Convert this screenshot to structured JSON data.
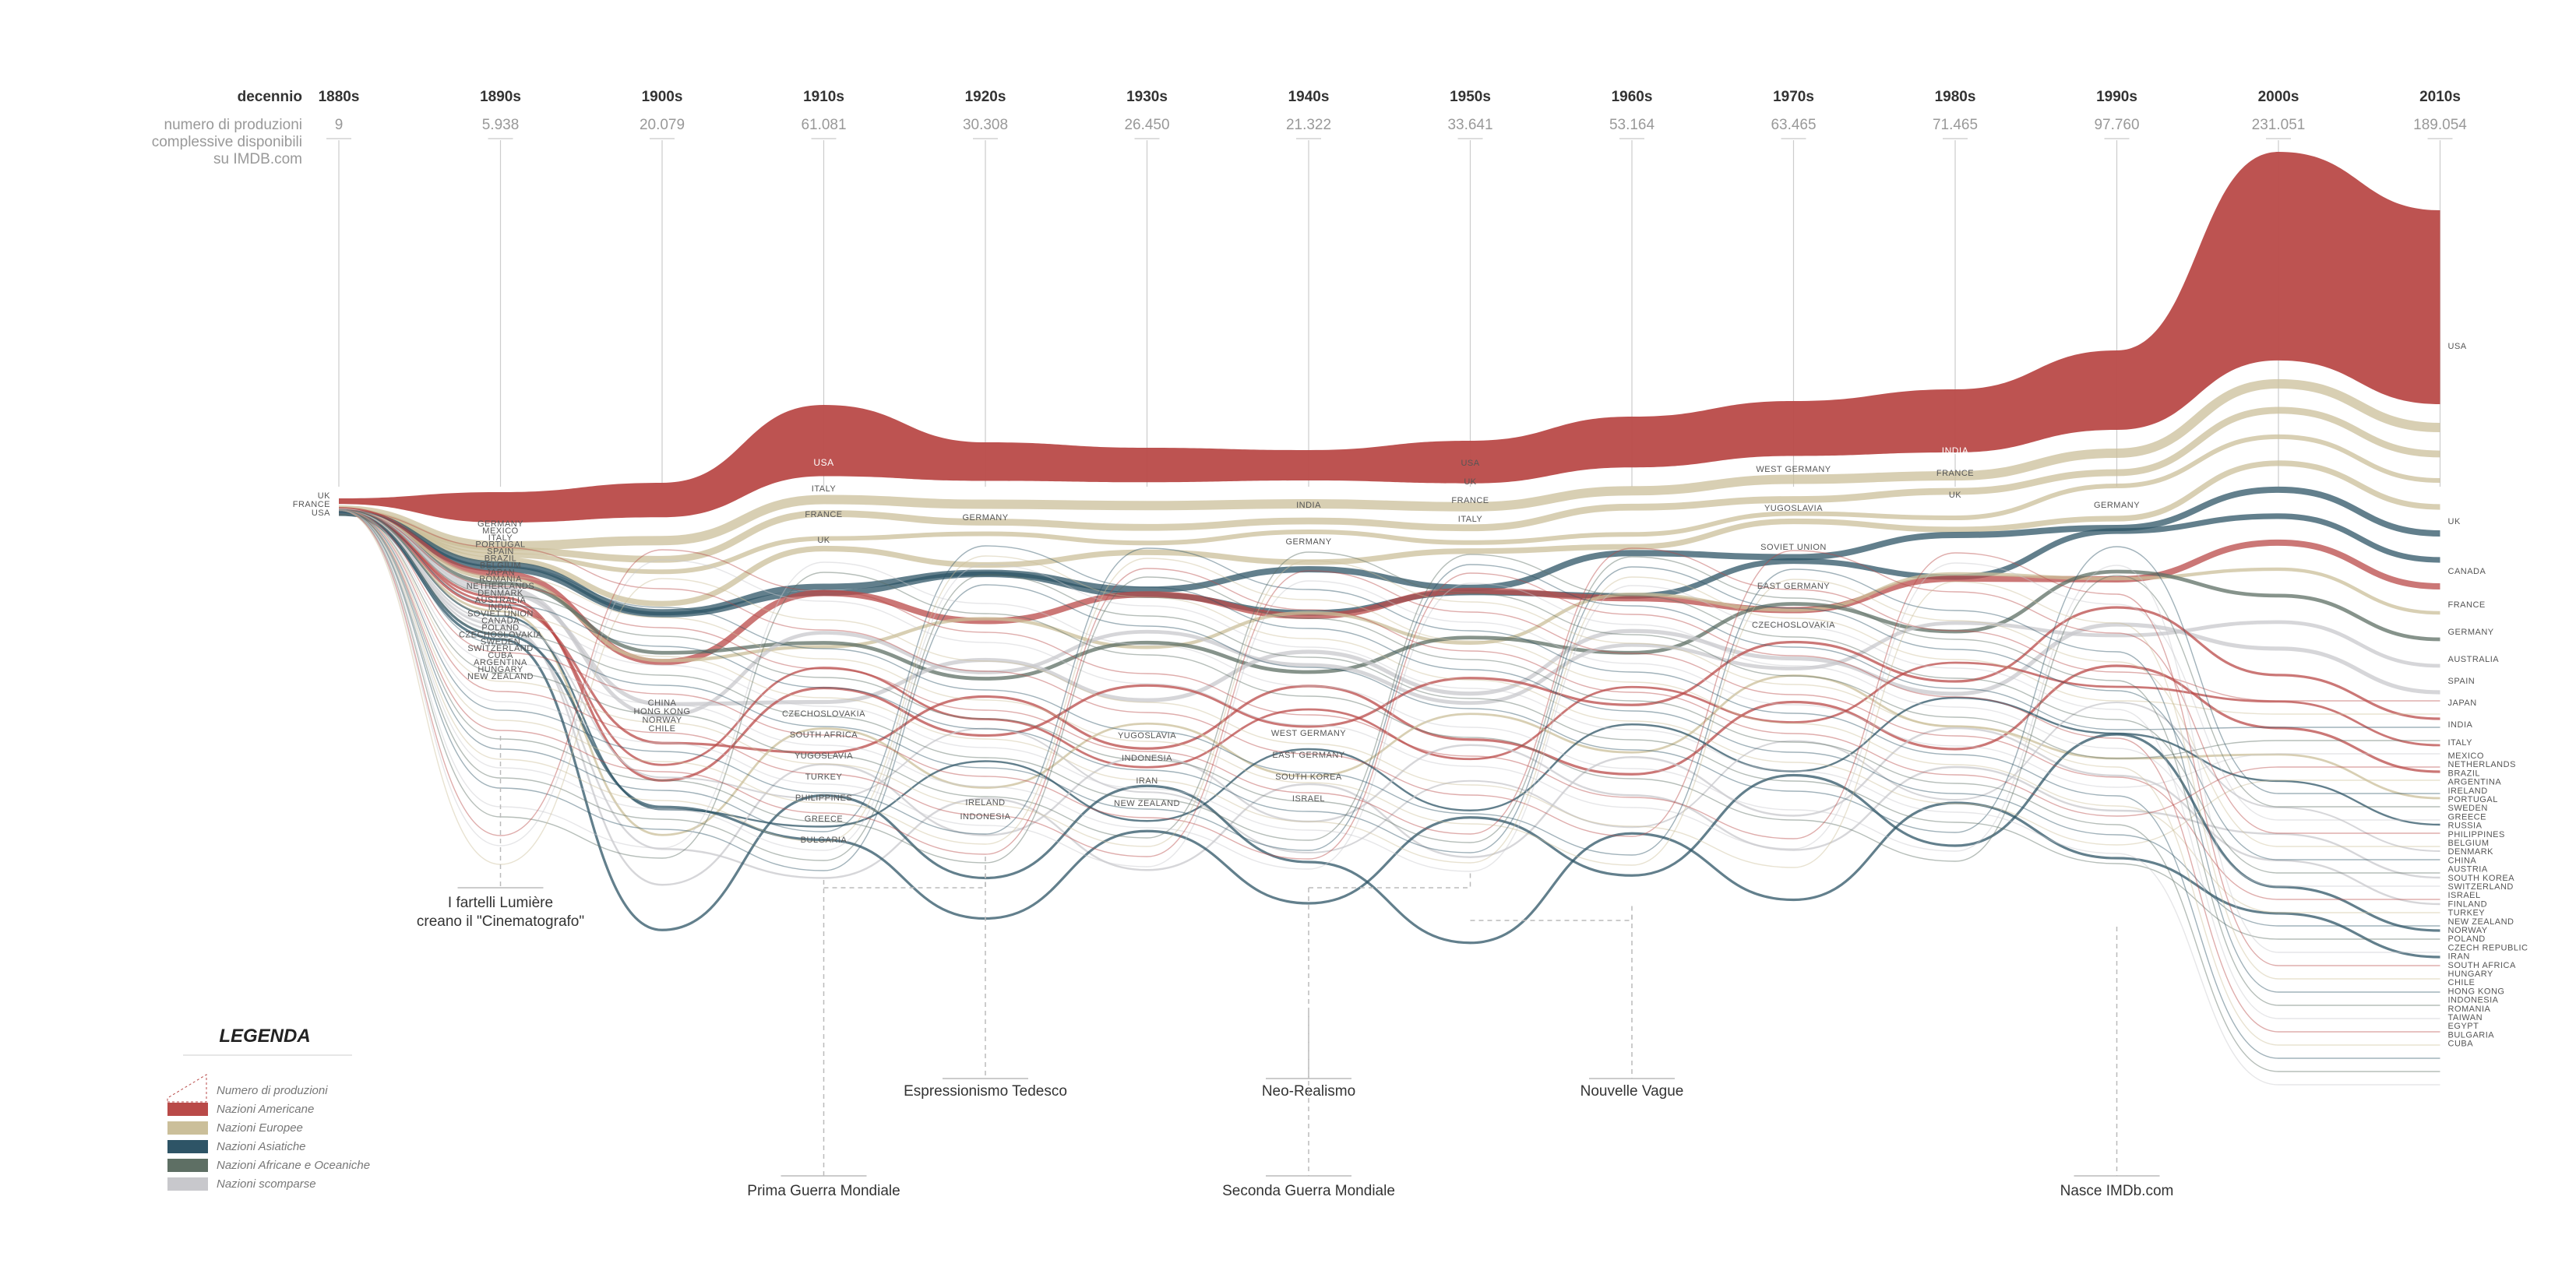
{
  "chart_data": {
    "type": "area",
    "header_label": "decennio",
    "subheader_label": [
      "numero di produzioni",
      "complessive disponibili",
      "su IMDB.com"
    ],
    "decades": [
      "1880s",
      "1890s",
      "1900s",
      "1910s",
      "1920s",
      "1930s",
      "1940s",
      "1950s",
      "1960s",
      "1970s",
      "1980s",
      "1990s",
      "2000s",
      "2010s"
    ],
    "totals": [
      "9",
      "5.938",
      "20.079",
      "61.081",
      "30.308",
      "26.450",
      "21.322",
      "33.641",
      "53.164",
      "63.465",
      "71.465",
      "97.760",
      "231.051",
      "189.054"
    ],
    "colors": {
      "Nazioni Americane": "#b94a48",
      "Nazioni Europee": "#cbbf9a",
      "Nazioni Asiatiche": "#2e5466",
      "Nazioni Africane e Oceaniche": "#5e6f64",
      "Nazioni scomparse": "#c8c8cc"
    },
    "series": [
      {
        "name": "USA",
        "group": "Nazioni Americane",
        "values": [
          0.5,
          2,
          2.5,
          7,
          3,
          2.5,
          2,
          3.5,
          4.5,
          5,
          6,
          8,
          28,
          22
        ]
      },
      {
        "name": "UK",
        "group": "Nazioni Europee",
        "values": [
          0.4,
          0.8,
          1.0,
          0.8,
          0.8,
          0.9,
          0.9,
          1,
          1.1,
          1.2,
          1.2,
          1.4,
          3,
          3
        ]
      },
      {
        "name": "FRANCE",
        "group": "Nazioni Europee",
        "values": [
          0.4,
          0.9,
          1.4,
          1.2,
          0.8,
          0.9,
          0.8,
          0.9,
          1.0,
          1.0,
          1.0,
          1.1,
          2.2,
          2.0
        ]
      },
      {
        "name": "ITALY",
        "group": "Nazioni Europee",
        "values": [
          0.1,
          0.3,
          0.8,
          1.4,
          0.6,
          0.5,
          0.5,
          0.8,
          1.0,
          0.9,
          0.8,
          0.8,
          1.5,
          1.2
        ]
      },
      {
        "name": "GERMANY",
        "group": "Nazioni Europee",
        "values": [
          0.1,
          0.4,
          0.6,
          0.9,
          1.0,
          0.7,
          0.7,
          0.5,
          0.4,
          0.3,
          0.3,
          1.0,
          1.8,
          1.6
        ]
      },
      {
        "name": "INDIA",
        "group": "Nazioni Asiatiche",
        "values": [
          0.05,
          0.1,
          0.2,
          0.3,
          0.5,
          0.7,
          0.9,
          1.1,
          1.3,
          1.5,
          1.7,
          1.4,
          2.0,
          1.6
        ]
      },
      {
        "name": "JAPAN",
        "group": "Nazioni Asiatiche",
        "values": [
          0.05,
          0.2,
          0.3,
          0.5,
          0.6,
          0.8,
          0.6,
          0.9,
          1.1,
          1.2,
          1.2,
          1.1,
          1.8,
          1.5
        ]
      },
      {
        "name": "CANADA",
        "group": "Nazioni Americane",
        "values": [
          0.05,
          0.1,
          0.2,
          0.3,
          0.2,
          0.2,
          0.3,
          0.4,
          0.6,
          0.9,
          1.1,
          1.4,
          2.0,
          1.6
        ]
      },
      {
        "name": "SPAIN",
        "group": "Nazioni Europee",
        "values": [
          0.05,
          0.2,
          0.3,
          0.4,
          0.3,
          0.3,
          0.4,
          0.5,
          0.7,
          0.7,
          0.6,
          0.6,
          1.1,
          1.0
        ]
      },
      {
        "name": "AUSTRALIA",
        "group": "Nazioni Africane e Oceaniche",
        "values": [
          0.05,
          0.2,
          0.3,
          0.4,
          0.2,
          0.2,
          0.2,
          0.3,
          0.4,
          0.6,
          0.7,
          0.8,
          1.2,
          1.1
        ]
      },
      {
        "name": "SOVIET UNION",
        "group": "Nazioni scomparse",
        "values": [
          0.05,
          0.2,
          0.3,
          0.5,
          0.6,
          0.7,
          0.8,
          1.0,
          1.2,
          1.1,
          1.0,
          0.3,
          0,
          0
        ]
      },
      {
        "name": "WEST GERMANY",
        "group": "Nazioni scomparse",
        "values": [
          0,
          0,
          0,
          0,
          0,
          0,
          0.3,
          0.9,
          1.2,
          1.3,
          1.1,
          0.3,
          0,
          0
        ]
      },
      {
        "name": "MEXICO",
        "group": "Nazioni Americane",
        "values": [
          0.05,
          0.1,
          0.2,
          0.2,
          0.2,
          0.4,
          0.6,
          0.7,
          0.7,
          0.6,
          0.6,
          0.5,
          0.8,
          0.8
        ]
      },
      {
        "name": "ARGENTINA",
        "group": "Nazioni Americane",
        "values": [
          0.03,
          0.1,
          0.1,
          0.2,
          0.2,
          0.3,
          0.4,
          0.4,
          0.4,
          0.4,
          0.4,
          0.4,
          0.7,
          0.7
        ]
      },
      {
        "name": "BRAZIL",
        "group": "Nazioni Americane",
        "values": [
          0.03,
          0.1,
          0.2,
          0.2,
          0.2,
          0.2,
          0.3,
          0.4,
          0.5,
          0.5,
          0.5,
          0.4,
          0.8,
          0.8
        ]
      },
      {
        "name": "NETHERLANDS",
        "group": "Nazioni Europee",
        "values": [
          0.03,
          0.1,
          0.2,
          0.3,
          0.2,
          0.2,
          0.2,
          0.2,
          0.3,
          0.3,
          0.3,
          0.4,
          0.7,
          0.7
        ]
      },
      {
        "name": "PHILIPPINES",
        "group": "Nazioni Asiatiche",
        "values": [
          0,
          0,
          0,
          0.1,
          0.2,
          0.3,
          0.3,
          0.5,
          0.6,
          0.6,
          0.6,
          0.4,
          0.6,
          0.6
        ]
      },
      {
        "name": "CZECHOSLOVAKIA",
        "group": "Nazioni scomparse",
        "values": [
          0.03,
          0.1,
          0.2,
          0.3,
          0.3,
          0.3,
          0.3,
          0.4,
          0.5,
          0.5,
          0.5,
          0.2,
          0,
          0
        ]
      },
      {
        "name": "YUGOSLAVIA",
        "group": "Nazioni scomparse",
        "values": [
          0,
          0,
          0,
          0.1,
          0.1,
          0.2,
          0.2,
          0.3,
          0.5,
          0.6,
          0.5,
          0.2,
          0,
          0
        ]
      },
      {
        "name": "EAST GERMANY",
        "group": "Nazioni scomparse",
        "values": [
          0,
          0,
          0,
          0,
          0,
          0,
          0.2,
          0.4,
          0.5,
          0.6,
          0.5,
          0.1,
          0,
          0
        ]
      },
      {
        "name": "SOUTH KOREA",
        "group": "Nazioni Asiatiche",
        "values": [
          0,
          0,
          0,
          0,
          0,
          0,
          0.1,
          0.3,
          0.5,
          0.5,
          0.5,
          0.5,
          0.8,
          0.7
        ]
      },
      {
        "name": "HONG KONG",
        "group": "Nazioni Asiatiche",
        "values": [
          0,
          0,
          0.1,
          0.1,
          0.1,
          0.2,
          0.3,
          0.5,
          0.6,
          0.7,
          0.8,
          0.7,
          0.5,
          0.4
        ]
      }
    ],
    "top_labels": {
      "1910s": [
        "USA",
        "ITALY",
        "FRANCE",
        "UK"
      ],
      "1920s": [
        "GERMANY"
      ],
      "1940s": [
        "INDIA",
        "GERMANY"
      ],
      "1950s": [
        "USA",
        "UK",
        "FRANCE",
        "ITALY"
      ],
      "1970s": [
        "WEST GERMANY",
        "YUGOSLAVIA",
        "SOVIET UNION",
        "EAST GERMANY",
        "CZECHOSLOVAKIA"
      ],
      "1980s": [
        "INDIA",
        "FRANCE",
        "UK"
      ],
      "1990s": [
        "GERMANY"
      ]
    },
    "left_labels": [
      "UK",
      "FRANCE",
      "USA"
    ],
    "labels_1890s": [
      "GERMANY",
      "MEXICO",
      "ITALY",
      "PORTUGAL",
      "SPAIN",
      "BRAZIL",
      "BELGIUM",
      "JAPAN",
      "ROMANIA",
      "NETHERLANDS",
      "DENMARK",
      "AUSTRALIA",
      "INDIA",
      "SOVIET UNION",
      "CANADA",
      "POLAND",
      "CZECHOSLOVAKIA",
      "SWEDEN",
      "SWITZERLAND",
      "CUBA",
      "ARGENTINA",
      "HUNGARY",
      "NEW ZEALAND"
    ],
    "labels_1900s": [
      "CHINA",
      "HONG KONG",
      "NORWAY",
      "CHILE"
    ],
    "labels_1910s": [
      "CZECHOSLOVAKIA",
      "SOUTH AFRICA",
      "YUGOSLAVIA",
      "TURKEY",
      "PHILIPPINES",
      "GREECE",
      "BULGARIA"
    ],
    "labels_1920s": [
      "IRELAND",
      "INDONESIA"
    ],
    "labels_1930s": [
      "YUGOSLAVIA",
      "INDONESIA",
      "IRAN",
      "NEW ZEALAND"
    ],
    "labels_1940s": [
      "WEST GERMANY",
      "EAST GERMANY",
      "SOUTH KOREA",
      "ISRAEL"
    ],
    "right_labels": [
      "USA",
      "UK",
      "CANADA",
      "FRANCE",
      "GERMANY",
      "AUSTRALIA",
      "SPAIN",
      "JAPAN",
      "INDIA",
      "ITALY",
      "MEXICO",
      "NETHERLANDS",
      "BRAZIL",
      "ARGENTINA",
      "IRELAND",
      "PORTUGAL",
      "SWEDEN",
      "GREECE",
      "RUSSIA",
      "PHILIPPINES",
      "BELGIUM",
      "DENMARK",
      "CHINA",
      "AUSTRIA",
      "SOUTH KOREA",
      "SWITZERLAND",
      "ISRAEL",
      "FINLAND",
      "TURKEY",
      "NEW ZEALAND",
      "NORWAY",
      "POLAND",
      "CZECH REPUBLIC",
      "IRAN",
      "SOUTH AFRICA",
      "HUNGARY",
      "CHILE",
      "HONG KONG",
      "INDONESIA",
      "ROMANIA",
      "TAIWAN",
      "EGYPT",
      "BULGARIA",
      "CUBA"
    ],
    "events": [
      {
        "decade": "1890s",
        "text": [
          "I fartelli Lumière",
          "creano il \"Cinematografo\""
        ]
      },
      {
        "decade": "1920s",
        "text": [
          "Espressionismo Tedesco"
        ]
      },
      {
        "decade": "1910s",
        "text": [
          "Prima Guerra Mondiale"
        ]
      },
      {
        "decade": "1940s",
        "text": [
          "Neo-Realismo"
        ]
      },
      {
        "decade": "1940s",
        "text": [
          "Seconda Guerra Mondiale"
        ]
      },
      {
        "decade": "1960s",
        "text": [
          "Nouvelle Vague"
        ]
      },
      {
        "decade": "1990s",
        "text": [
          "Nasce IMDb.com"
        ]
      }
    ],
    "legend": {
      "title": "LEGENDA",
      "items": [
        "Numero di produzioni",
        "Nazioni Americane",
        "Nazioni Europee",
        "Nazioni Asiatiche",
        "Nazioni Africane e Oceaniche",
        "Nazioni scomparse"
      ]
    }
  }
}
